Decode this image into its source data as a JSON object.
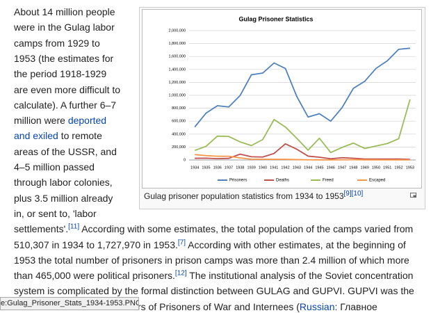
{
  "article": {
    "lines": [
      [
        "About 14 million people"
      ],
      [
        "were in the Gulag labor"
      ],
      [
        "camps from 1929 to"
      ],
      [
        "1953 (the estimates for"
      ],
      [
        "the period 1918-1929"
      ],
      [
        "are even more difficult to"
      ],
      [
        "calculate). A further 6–7"
      ],
      [
        "million were ",
        {
          "text": "deported",
          "style": "link"
        }
      ],
      [
        {
          "text": "and exiled",
          "style": "link"
        },
        " to remote"
      ],
      [
        "areas of the USSR, and"
      ],
      [
        "4–5 million passed"
      ],
      [
        "through labor colonies,"
      ],
      [
        "plus 3.5 million already"
      ],
      [
        "in, or sent to, 'labor"
      ],
      [
        "settlements'.",
        {
          "text": "[11]",
          "style": "sup"
        },
        " According with some estimates, the total population of the camps varied from"
      ],
      [
        "510,307 in 1934 to 1,727,970 in 1953.",
        {
          "text": "[7]",
          "style": "sup"
        },
        " According with other estimates, at the beginning of"
      ],
      [
        "1953 the total number of prisoners in prison camps was more than 2.4 million of which more"
      ],
      [
        "than 465,000 were political prisoners.",
        {
          "text": "[12]",
          "style": "sup"
        },
        " The institutional analysis of the Soviet concentration"
      ],
      [
        "system is complicated by the formal distinction between GULAG and GUPVI. GUPVI was the"
      ],
      [
        "rs of Prisoners of War and Internees (",
        {
          "text": "Russian",
          "style": "link"
        },
        ": Главное"
      ]
    ]
  },
  "figure": {
    "caption": [
      "Gulag prisoner population statistics from 1934 to 1953",
      {
        "text": "[9][10]",
        "style": "sup"
      }
    ]
  },
  "status_bar": "e:Gulag_Prisoner_Stats_1934-1953.PNG",
  "chart_data": {
    "type": "line",
    "title": "Gulag Prisoner Statistics",
    "categories": [
      "1934",
      "1935",
      "1936",
      "1937",
      "1938",
      "1939",
      "1940",
      "1941",
      "1942",
      "1943",
      "1944",
      "1945",
      "1946",
      "1947",
      "1948",
      "1949",
      "1950",
      "1951",
      "1952",
      "1953"
    ],
    "series": [
      {
        "name": "Prisoners",
        "color": "#4f81bd",
        "values": [
          510307,
          725000,
          839000,
          820000,
          996000,
          1317000,
          1344000,
          1500000,
          1415000,
          983000,
          664000,
          715000,
          600000,
          808000,
          1108000,
          1216000,
          1416000,
          1533000,
          1711000,
          1727970
        ]
      },
      {
        "name": "Deaths",
        "color": "#c0504d",
        "values": [
          26000,
          28000,
          20000,
          25000,
          90000,
          50000,
          46000,
          101000,
          249000,
          167000,
          60000,
          43000,
          18000,
          35000,
          27000,
          15000,
          14000,
          15000,
          14000,
          9000
        ]
      },
      {
        "name": "Freed",
        "color": "#9bbb59",
        "values": [
          147000,
          212000,
          369000,
          364000,
          280000,
          223000,
          316000,
          625000,
          510000,
          336000,
          152000,
          336000,
          115000,
          194000,
          261000,
          178000,
          216000,
          254000,
          329000,
          937000
        ]
      },
      {
        "name": "Escaped",
        "color": "#f79646",
        "values": [
          83000,
          67000,
          58000,
          58000,
          32000,
          12000,
          11000,
          10000,
          11000,
          6000,
          3000,
          2000,
          1000,
          3000,
          4000,
          2000,
          2000,
          1000,
          1000,
          1000
        ]
      }
    ],
    "ylim": [
      0,
      2000000
    ],
    "yticks": [
      0,
      {
        "value": 200000,
        "label": "200,000"
      },
      {
        "value": 400000,
        "label": "400,000"
      },
      {
        "value": 600000,
        "label": "600,000"
      },
      {
        "value": 800000,
        "label": "800,000"
      },
      {
        "value": 1000000,
        "label": "1,000,000"
      },
      {
        "value": 1200000,
        "label": "1,200,000"
      },
      {
        "value": 1400000,
        "label": "1,400,000"
      },
      {
        "value": 1600000,
        "label": "1,600,000"
      },
      {
        "value": 1800000,
        "label": "1,800,000"
      },
      {
        "value": 2000000,
        "label": "2,000,000"
      }
    ],
    "grid": true,
    "legend": "bottom"
  }
}
